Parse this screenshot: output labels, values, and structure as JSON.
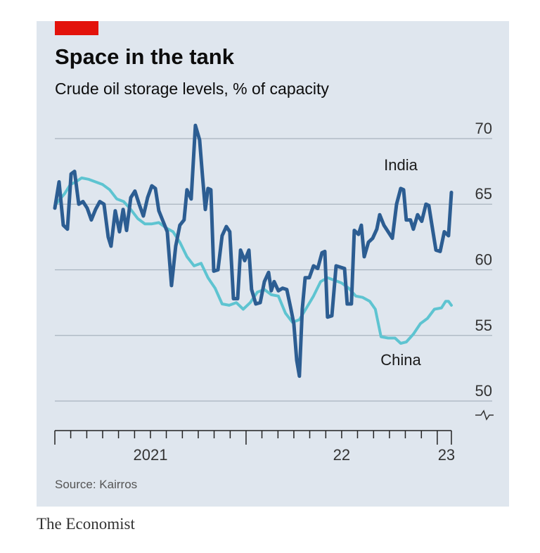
{
  "chart_data": {
    "type": "line",
    "title": "Space in the tank",
    "subtitle": "Crude oil storage levels, % of capacity",
    "source": "Source: Kairros",
    "brand": "The Economist",
    "xlim": [
      2021,
      2023.074
    ],
    "xticks": [
      2021,
      2021.083,
      2021.167,
      2021.25,
      2021.333,
      2021.417,
      2021.5,
      2021.583,
      2021.667,
      2021.75,
      2021.833,
      2021.917,
      2022,
      2022.083,
      2022.167,
      2022.25,
      2022.333,
      2022.417,
      2022.5,
      2022.583,
      2022.667,
      2022.75,
      2022.833,
      2022.917,
      2023
    ],
    "xtick_labels": [
      {
        "value": 2021,
        "label": "2021"
      },
      {
        "value": 2022,
        "label": "22"
      },
      {
        "value": 2023,
        "label": "23"
      }
    ],
    "ylim": [
      47.75,
      71.5
    ],
    "yticks": [
      50,
      55,
      60,
      65,
      70
    ],
    "grid": true,
    "series": [
      {
        "name": "China",
        "color": "#5ec4d1",
        "x": [
          2021.0,
          2021.022,
          2021.051,
          2021.081,
          2021.11,
          2021.14,
          2021.176,
          2021.213,
          2021.25,
          2021.287,
          2021.324,
          2021.36,
          2021.397,
          2021.434,
          2021.471,
          2021.507,
          2021.544,
          2021.581,
          2021.618,
          2021.654,
          2021.691,
          2021.728,
          2021.765,
          2021.801,
          2021.838,
          2021.875,
          2021.912,
          2021.949,
          2021.985,
          2022.022,
          2022.059,
          2022.096,
          2022.132,
          2022.169,
          2022.206,
          2022.243,
          2022.279,
          2022.316,
          2022.353,
          2022.39,
          2022.426,
          2022.463,
          2022.5,
          2022.537,
          2022.574,
          2022.61,
          2022.647,
          2022.676,
          2022.706,
          2022.743,
          2022.779,
          2022.809,
          2022.838,
          2022.875,
          2022.912,
          2022.949,
          2022.985,
          2023.022,
          2023.044,
          2023.059,
          2023.074
        ],
        "values": [
          64.9,
          65.3,
          65.8,
          66.5,
          66.7,
          67.0,
          66.9,
          66.7,
          66.5,
          66.1,
          65.4,
          65.2,
          64.6,
          63.9,
          63.5,
          63.5,
          63.6,
          63.2,
          62.9,
          62.1,
          61.0,
          60.3,
          60.5,
          59.4,
          58.6,
          57.4,
          57.3,
          57.5,
          57.0,
          57.5,
          58.3,
          58.5,
          58.1,
          58.0,
          56.7,
          56.0,
          56.2,
          57.1,
          58.0,
          59.1,
          59.4,
          59.2,
          59.0,
          58.6,
          58.0,
          57.9,
          57.6,
          57.0,
          54.9,
          54.8,
          54.8,
          54.4,
          54.5,
          55.1,
          55.9,
          56.3,
          57.0,
          57.1,
          57.6,
          57.6,
          57.3
        ]
      },
      {
        "name": "India",
        "color": "#2c5d92",
        "x": [
          2021.0,
          2021.022,
          2021.044,
          2021.066,
          2021.085,
          2021.103,
          2021.125,
          2021.147,
          2021.169,
          2021.191,
          2021.213,
          2021.235,
          2021.257,
          2021.279,
          2021.294,
          2021.316,
          2021.338,
          2021.357,
          2021.375,
          2021.397,
          2021.419,
          2021.441,
          2021.463,
          2021.485,
          2021.507,
          2021.526,
          2021.544,
          2021.566,
          2021.588,
          2021.61,
          2021.632,
          2021.654,
          2021.676,
          2021.691,
          2021.713,
          2021.735,
          2021.757,
          2021.772,
          2021.787,
          2021.801,
          2021.816,
          2021.831,
          2021.853,
          2021.875,
          2021.897,
          2021.915,
          2021.934,
          2021.956,
          2021.971,
          2021.993,
          2022.015,
          2022.029,
          2022.051,
          2022.074,
          2022.096,
          2022.118,
          2022.132,
          2022.147,
          2022.169,
          2022.191,
          2022.213,
          2022.235,
          2022.25,
          2022.265,
          2022.279,
          2022.294,
          2022.309,
          2022.331,
          2022.353,
          2022.375,
          2022.397,
          2022.412,
          2022.426,
          2022.449,
          2022.471,
          2022.493,
          2022.515,
          2022.529,
          2022.551,
          2022.566,
          2022.588,
          2022.603,
          2022.618,
          2022.64,
          2022.662,
          2022.684,
          2022.699,
          2022.721,
          2022.743,
          2022.765,
          2022.787,
          2022.809,
          2022.824,
          2022.838,
          2022.86,
          2022.875,
          2022.897,
          2022.919,
          2022.941,
          2022.956,
          2022.971,
          2022.993,
          2023.015,
          2023.037,
          2023.059,
          2023.074
        ],
        "values": [
          64.7,
          66.7,
          63.4,
          63.1,
          67.3,
          67.5,
          65.0,
          65.2,
          64.7,
          63.8,
          64.6,
          65.2,
          65.0,
          62.5,
          61.8,
          64.5,
          62.9,
          64.6,
          63.0,
          65.5,
          66.0,
          65.0,
          64.1,
          65.5,
          66.4,
          66.2,
          64.5,
          63.7,
          62.9,
          58.8,
          61.8,
          63.4,
          63.8,
          66.1,
          65.4,
          71.0,
          69.9,
          67.2,
          64.6,
          66.2,
          66.1,
          59.9,
          60.0,
          62.6,
          63.3,
          62.9,
          57.8,
          57.8,
          61.5,
          60.7,
          61.5,
          58.5,
          57.4,
          57.5,
          59.1,
          59.8,
          58.4,
          59.1,
          58.4,
          58.6,
          58.5,
          57.0,
          55.9,
          53.1,
          51.9,
          57.0,
          59.4,
          59.4,
          60.3,
          60.1,
          61.3,
          61.4,
          56.4,
          56.5,
          60.3,
          60.2,
          60.1,
          57.4,
          57.4,
          63.0,
          62.7,
          63.4,
          61.0,
          62.1,
          62.4,
          63.1,
          64.2,
          63.4,
          62.9,
          62.4,
          65.0,
          66.2,
          66.1,
          63.8,
          63.8,
          63.1,
          64.2,
          63.7,
          65.0,
          64.9,
          63.5,
          61.5,
          61.4,
          62.9,
          62.6,
          65.9
        ]
      }
    ],
    "annotations": [
      {
        "series": 1,
        "text": "India"
      },
      {
        "series": 0,
        "text": "China"
      }
    ]
  }
}
